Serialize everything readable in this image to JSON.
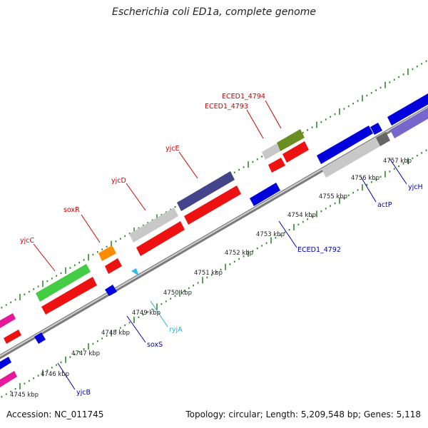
{
  "title": "Escherichia coli ED1a, complete genome",
  "footer": {
    "accession": "Accession: NC_011745",
    "summary": "Topology: circular; Length: 5,209,548 bp; Genes: 5,118"
  },
  "colors": {
    "backbone": "#9a9a9a",
    "tick_outer": "#2e8b2e",
    "tick_inner": "#2e8b2e",
    "label_red": "#cc0000",
    "label_blue": "#0000aa",
    "label_cyan": "#33aadd"
  },
  "kbp_ticks": [
    "4745 kbp",
    "4746 kbp",
    "4747 kbp",
    "4748 kbp",
    "4749 kbp",
    "4750 kbp",
    "4751 kbp",
    "4752 kbp",
    "4753 kbp",
    "4754 kbp",
    "4755 kbp",
    "4756 kbp",
    "4757 kbp"
  ],
  "forward_genes": [
    {
      "label": "yjcC",
      "color": "#44cc44"
    },
    {
      "label": "soxR",
      "color": "#ff8c00"
    },
    {
      "label": "yjcD",
      "color": "#c8c8c8"
    },
    {
      "label": "yjcE",
      "color": "#44448a"
    },
    {
      "label": "ECED1_4793",
      "color": "#c8c8c8"
    },
    {
      "label": "ECED1_4794",
      "color": "#6b8e23"
    }
  ],
  "reverse_genes": [
    {
      "label": "yjcB",
      "color": "#0000cc"
    },
    {
      "label": "soxS",
      "color": "#0000cc"
    },
    {
      "label": "ryjA",
      "color": "#33bbee"
    },
    {
      "label": "ECED1_4792",
      "color": "#0000cc"
    },
    {
      "label": "actP",
      "color": "#0000cc"
    },
    {
      "label": "yjcH",
      "color": "#0000cc"
    }
  ]
}
